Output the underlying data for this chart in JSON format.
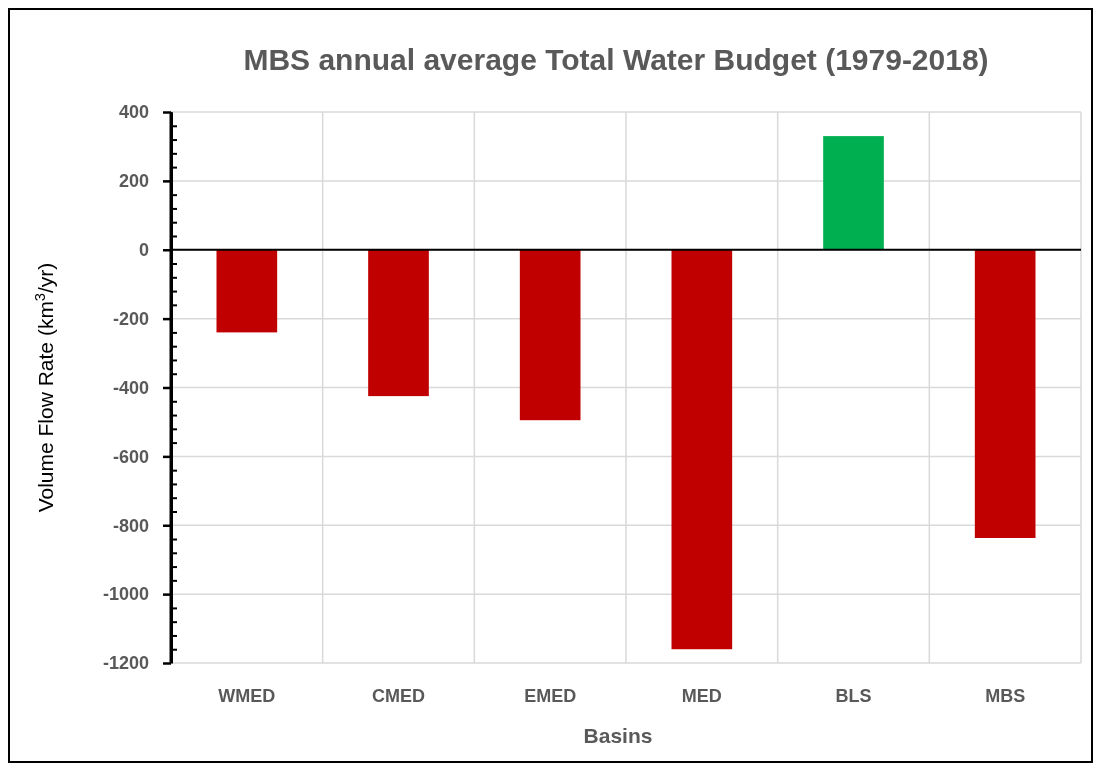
{
  "chart_data": {
    "type": "bar",
    "title": "MBS annual average Total Water Budget (1979-2018)",
    "xlabel": "Basins",
    "ylabel": "Volume Flow Rate  (km$^{3}$/yr)",
    "categories": [
      "WMED",
      "CMED",
      "EMED",
      "MED",
      "BLS",
      "MBS"
    ],
    "values": [
      -240,
      -425,
      -495,
      -1160,
      330,
      -837
    ],
    "colors": [
      "#c00000",
      "#c00000",
      "#c00000",
      "#c00000",
      "#00b050",
      "#c00000"
    ],
    "ylim": [
      -1200,
      400
    ],
    "yticks": [
      -1200,
      {
        "value": -1160,
        "label": null
      },
      {
        "value": -1120,
        "label": null
      },
      {
        "value": -1080,
        "label": null
      },
      {
        "value": -1040,
        "label": null
      },
      -1000,
      {
        "value": -960,
        "label": null
      },
      {
        "value": -920,
        "label": null
      },
      {
        "value": -880,
        "label": null
      },
      {
        "value": -840,
        "label": null
      },
      -800,
      {
        "value": -760,
        "label": null
      },
      {
        "value": -720,
        "label": null
      },
      {
        "value": -680,
        "label": null
      },
      {
        "value": -640,
        "label": null
      },
      -600,
      {
        "value": -560,
        "label": null
      },
      {
        "value": -520,
        "label": null
      },
      {
        "value": -480,
        "label": null
      },
      {
        "value": -440,
        "label": null
      },
      -400,
      {
        "value": -360,
        "label": null
      },
      {
        "value": -320,
        "label": null
      },
      {
        "value": -280,
        "label": null
      },
      {
        "value": -240,
        "label": null
      },
      -200,
      {
        "value": -160,
        "label": null
      },
      {
        "value": -120,
        "label": null
      },
      {
        "value": -80,
        "label": null
      },
      {
        "value": -40,
        "label": null
      },
      0,
      {
        "value": 40,
        "label": null
      },
      {
        "value": 80,
        "label": null
      },
      {
        "value": 120,
        "label": null
      },
      {
        "value": 160,
        "label": null
      },
      200,
      {
        "value": 240,
        "label": null
      },
      {
        "value": 280,
        "label": null
      },
      {
        "value": 320,
        "label": null
      },
      {
        "value": 360,
        "label": null
      },
      400
    ],
    "grid": true
  }
}
